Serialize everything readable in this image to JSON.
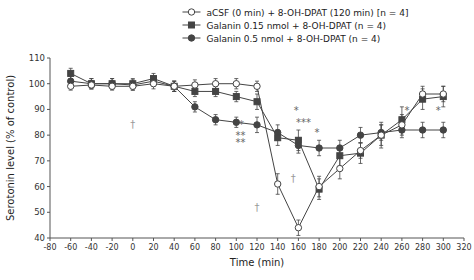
{
  "chart_data": {
    "type": "line",
    "x": [
      -60,
      -40,
      -20,
      0,
      20,
      40,
      60,
      80,
      100,
      120,
      140,
      160,
      180,
      200,
      220,
      240,
      260,
      280,
      300
    ],
    "series": [
      {
        "name": "aCSF (0 min) + 8-OH-DPAT (120 min) [n = 4]",
        "color": "#444444",
        "marker": "open-circle",
        "values": [
          99,
          99.5,
          99,
          99,
          100,
          99,
          99.5,
          100,
          100,
          99,
          61,
          44,
          60,
          67,
          74,
          80,
          84,
          96,
          96
        ],
        "errors": [
          1.5,
          1.5,
          1.5,
          1.5,
          2,
          2,
          2,
          2,
          2,
          2,
          4,
          3,
          4,
          4,
          3,
          4,
          4,
          3,
          3
        ]
      },
      {
        "name": "Galanin 0.15 nmol + 8-OH-DPAT (n = 4)",
        "color": "#444444",
        "marker": "square",
        "values": [
          104,
          100,
          100,
          100,
          102,
          99,
          97,
          97,
          95,
          93,
          79,
          78,
          59,
          72,
          73,
          80,
          86,
          94,
          95
        ],
        "errors": [
          2,
          2,
          2,
          2,
          2,
          2,
          2,
          2,
          2,
          3,
          3,
          4,
          4,
          4,
          4,
          5,
          5,
          4,
          4
        ]
      },
      {
        "name": "Galanin 0.5 nmol + 8-OH-DPAT (n = 4)",
        "color": "#444444",
        "marker": "circle",
        "values": [
          101,
          100,
          100,
          99.5,
          101,
          99,
          91,
          86,
          85,
          84,
          81,
          76,
          75,
          75,
          80,
          81,
          82,
          82,
          82
        ],
        "errors": [
          2,
          2,
          2,
          2,
          2,
          2,
          2,
          2,
          2,
          3,
          3,
          3,
          3,
          3,
          3,
          3,
          3,
          3,
          3
        ]
      }
    ],
    "xlabel": "Time (min)",
    "ylabel": "Serotonin level (% of control)",
    "xlim": [
      -80,
      320
    ],
    "ylim": [
      40,
      110
    ],
    "xticks": [
      -80,
      -60,
      -40,
      -20,
      0,
      20,
      40,
      60,
      80,
      100,
      120,
      140,
      160,
      180,
      200,
      220,
      240,
      260,
      280,
      300,
      320
    ],
    "yticks": [
      40,
      50,
      60,
      70,
      80,
      90,
      100,
      110
    ],
    "grid": false,
    "legend": "top",
    "annotations": [
      {
        "text": "†",
        "x": 0,
        "y": 84
      },
      {
        "text": "†",
        "x": 120,
        "y": 52
      },
      {
        "text": "†",
        "x": 155,
        "y": 63
      },
      {
        "text": "*",
        "x": 105,
        "y": 84
      },
      {
        "text": "**",
        "x": 104,
        "y": 80
      },
      {
        "text": "**",
        "x": 104,
        "y": 77
      },
      {
        "text": "*",
        "x": 158,
        "y": 89.5
      },
      {
        "text": "***",
        "x": 165,
        "y": 85
      },
      {
        "text": "*",
        "x": 178,
        "y": 81
      },
      {
        "text": "*",
        "x": 265,
        "y": 89.5
      },
      {
        "text": "*",
        "x": 295,
        "y": 89.5
      }
    ]
  }
}
